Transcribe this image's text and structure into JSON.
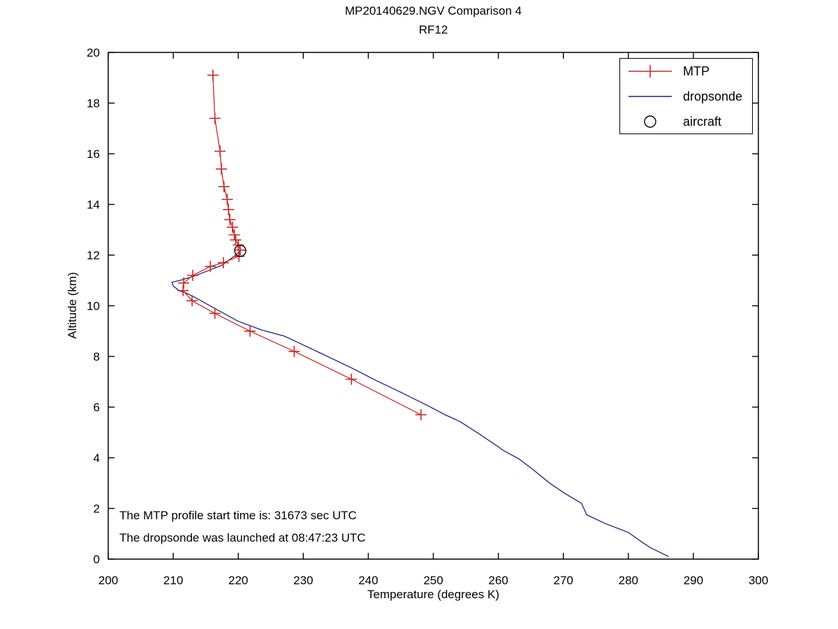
{
  "chart_data": {
    "type": "line",
    "title": "MP20140629.NGV Comparison 4",
    "subtitle": "RF12",
    "xlabel": "Temperature (degrees K)",
    "ylabel": "Altitude (km)",
    "xlim": [
      200,
      300
    ],
    "ylim": [
      0,
      20
    ],
    "xticks": [
      200,
      210,
      220,
      230,
      240,
      250,
      260,
      270,
      280,
      290,
      300
    ],
    "yticks": [
      0,
      2,
      4,
      6,
      8,
      10,
      12,
      14,
      16,
      18,
      20
    ],
    "grid": false,
    "legend_position": "top-right",
    "frame_color": "#000000",
    "series": [
      {
        "name": "MTP",
        "color": "#cc2929",
        "marker": "plus",
        "points": [
          [
            216.1,
            19.1
          ],
          [
            216.4,
            17.4
          ],
          [
            217.2,
            16.1
          ],
          [
            217.4,
            15.4
          ],
          [
            217.8,
            14.7
          ],
          [
            218.3,
            14.2
          ],
          [
            218.5,
            13.8
          ],
          [
            218.7,
            13.4
          ],
          [
            219.1,
            13.1
          ],
          [
            219.4,
            12.8
          ],
          [
            219.6,
            12.6
          ],
          [
            220.0,
            12.4
          ],
          [
            220.3,
            12.2
          ],
          [
            220.1,
            11.95
          ],
          [
            217.7,
            11.7
          ],
          [
            215.7,
            11.55
          ],
          [
            213.0,
            11.2
          ],
          [
            211.6,
            10.9
          ],
          [
            211.5,
            10.6
          ],
          [
            212.9,
            10.2
          ],
          [
            216.4,
            9.7
          ],
          [
            221.8,
            9.0
          ],
          [
            228.6,
            8.2
          ],
          [
            237.4,
            7.1
          ],
          [
            248.1,
            5.7
          ]
        ]
      },
      {
        "name": "dropsonde",
        "color": "#202078",
        "marker": "none",
        "points": [
          [
            220.4,
            12.2
          ],
          [
            219.6,
            12.0
          ],
          [
            217.5,
            11.6
          ],
          [
            215.5,
            11.4
          ],
          [
            213.0,
            11.15
          ],
          [
            211.0,
            11.0
          ],
          [
            209.8,
            10.93
          ],
          [
            210.0,
            10.78
          ],
          [
            210.9,
            10.6
          ],
          [
            212.0,
            10.5
          ],
          [
            213.2,
            10.35
          ],
          [
            216.0,
            9.95
          ],
          [
            219.9,
            9.4
          ],
          [
            223.5,
            9.05
          ],
          [
            227.1,
            8.8
          ],
          [
            228.8,
            8.6
          ],
          [
            232.5,
            8.15
          ],
          [
            237.4,
            7.55
          ],
          [
            241.2,
            7.05
          ],
          [
            244.9,
            6.6
          ],
          [
            249.2,
            6.05
          ],
          [
            251.8,
            5.7
          ],
          [
            253.5,
            5.5
          ],
          [
            254.3,
            5.4
          ],
          [
            257.0,
            4.95
          ],
          [
            259.9,
            4.45
          ],
          [
            260.7,
            4.3
          ],
          [
            263.2,
            3.95
          ],
          [
            265.5,
            3.5
          ],
          [
            267.9,
            3.0
          ],
          [
            270.2,
            2.6
          ],
          [
            272.8,
            2.2
          ],
          [
            273.6,
            1.75
          ],
          [
            276.5,
            1.4
          ],
          [
            280.0,
            1.05
          ],
          [
            282.2,
            0.65
          ],
          [
            283.4,
            0.45
          ],
          [
            286.2,
            0.1
          ]
        ]
      },
      {
        "name": "aircraft",
        "color": "#000000",
        "marker": "circle",
        "points": [
          [
            220.3,
            12.17
          ]
        ]
      }
    ],
    "annotations": [
      {
        "text": "The MTP profile start time is: 31673 sec UTC"
      },
      {
        "text": "The dropsonde was launched at 08:47:23 UTC"
      }
    ]
  },
  "legend": {
    "items": [
      {
        "label": "MTP"
      },
      {
        "label": "dropsonde"
      },
      {
        "label": "aircraft"
      }
    ]
  }
}
